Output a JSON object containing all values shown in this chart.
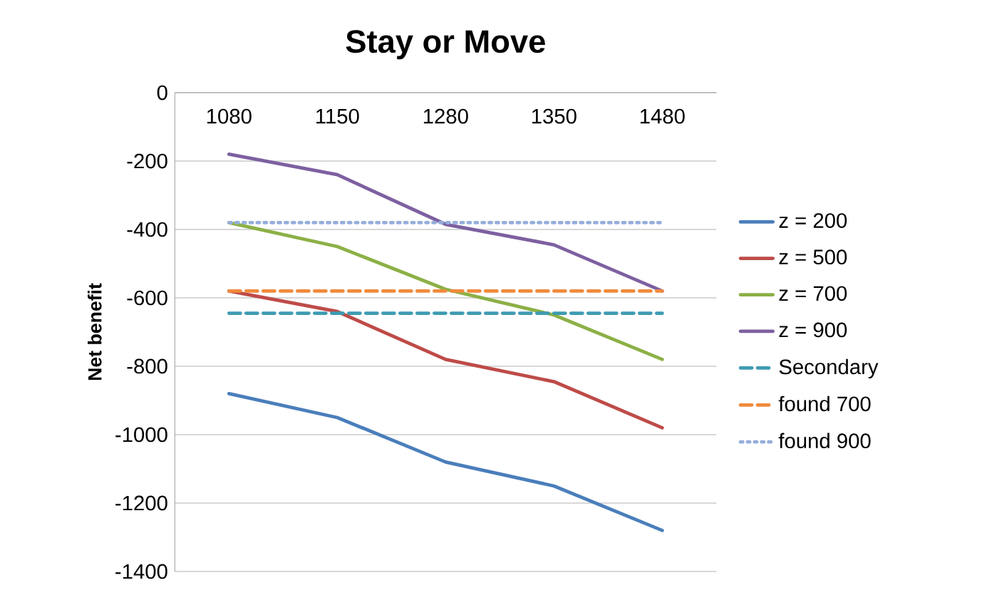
{
  "chart_data": {
    "type": "line",
    "title": "Stay or Move",
    "ylabel": "Net benefit",
    "categories": [
      "1080",
      "1150",
      "1280",
      "1350",
      "1480"
    ],
    "series": [
      {
        "name": "z = 200",
        "color": "#4a7ebb",
        "values": [
          -880,
          -950,
          -1080,
          -1150,
          -1280
        ]
      },
      {
        "name": "z = 500",
        "color": "#be4b48",
        "values": [
          -580,
          -640,
          -780,
          -845,
          -980
        ]
      },
      {
        "name": "z = 700",
        "color": "#8cb046",
        "values": [
          -380,
          -450,
          -575,
          -650,
          -780
        ]
      },
      {
        "name": "z = 900",
        "color": "#7d60a0",
        "values": [
          -180,
          -240,
          -385,
          -445,
          -580
        ]
      },
      {
        "name": "Secondary",
        "color": "#3e9bb2",
        "line_style": "dashed",
        "values": [
          -645,
          -645,
          -645,
          -645,
          -645
        ]
      },
      {
        "name": "found 700",
        "color": "#f08a3c",
        "line_style": "dashed",
        "values": [
          -580,
          -580,
          -580,
          -580,
          -580
        ]
      },
      {
        "name": "found 900",
        "color": "#95aedb",
        "line_style": "dotted",
        "values": [
          -380,
          -380,
          -380,
          -380,
          -380
        ]
      }
    ],
    "ylim": [
      -1400,
      0
    ],
    "yticks": [
      -1400,
      -1200,
      -1000,
      -800,
      -600,
      -400,
      -200,
      0
    ],
    "grid": "y",
    "legend": "right"
  }
}
